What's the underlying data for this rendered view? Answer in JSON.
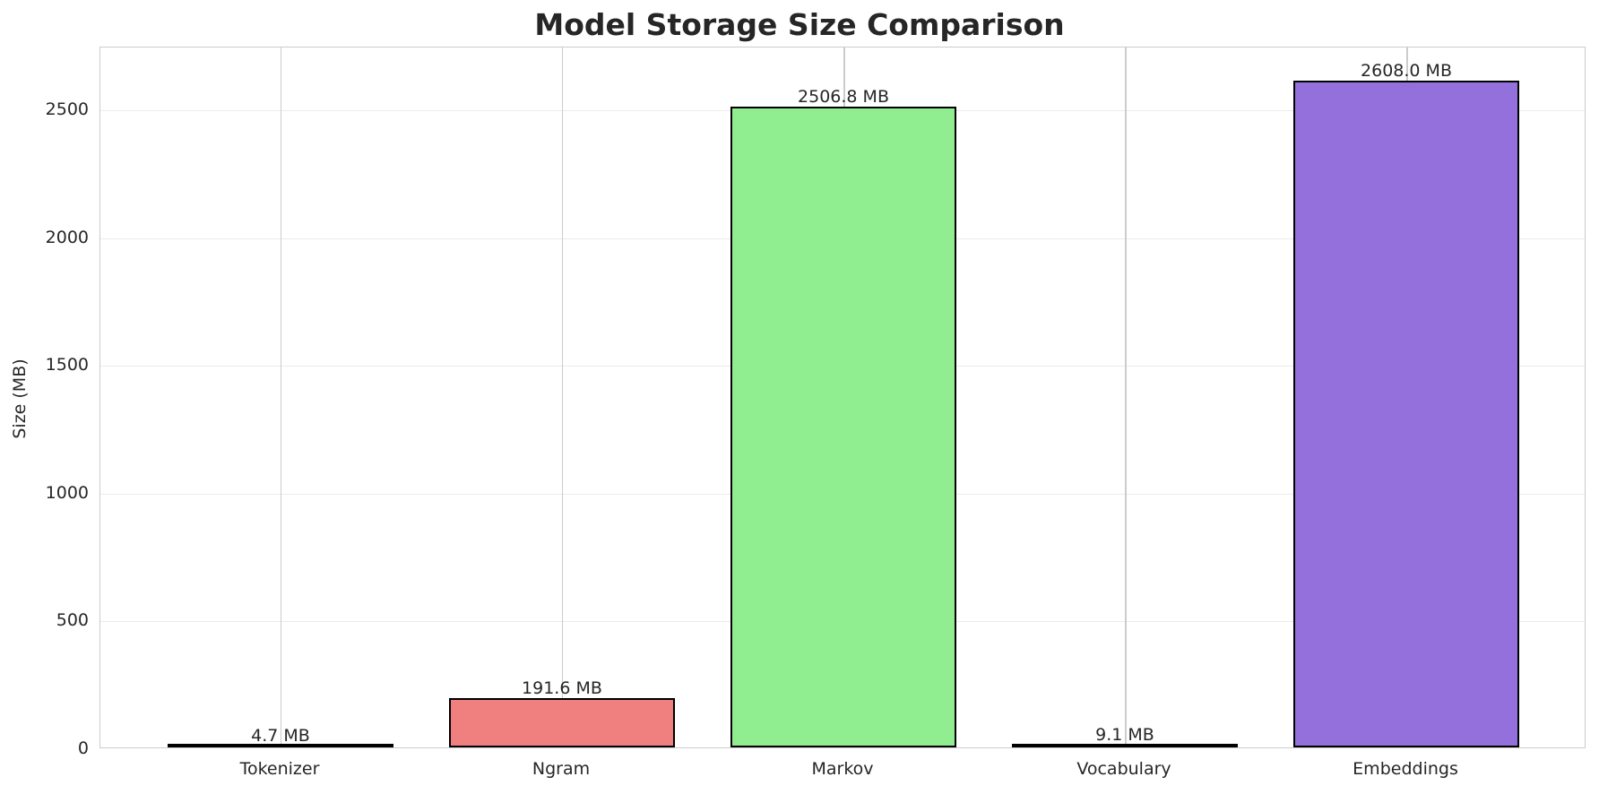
{
  "chart_data": {
    "type": "bar",
    "title": "Model Storage Size Comparison",
    "xlabel": "",
    "ylabel": "Size (MB)",
    "categories": [
      "Tokenizer",
      "Ngram",
      "Markov",
      "Vocabulary",
      "Embeddings"
    ],
    "values": [
      4.7,
      191.6,
      2506.8,
      9.1,
      2608.0
    ],
    "data_labels": [
      "4.7 MB",
      "191.6 MB",
      "2506.8 MB",
      "9.1 MB",
      "2608.0 MB"
    ],
    "colors": [
      "#66b3ff",
      "#f08080",
      "#90ee90",
      "#ffd700",
      "#9370db"
    ],
    "ylim": [
      0,
      2745
    ],
    "yticks": [
      0,
      500,
      1000,
      1500,
      2000,
      2500
    ],
    "grid": true,
    "legend": null
  }
}
